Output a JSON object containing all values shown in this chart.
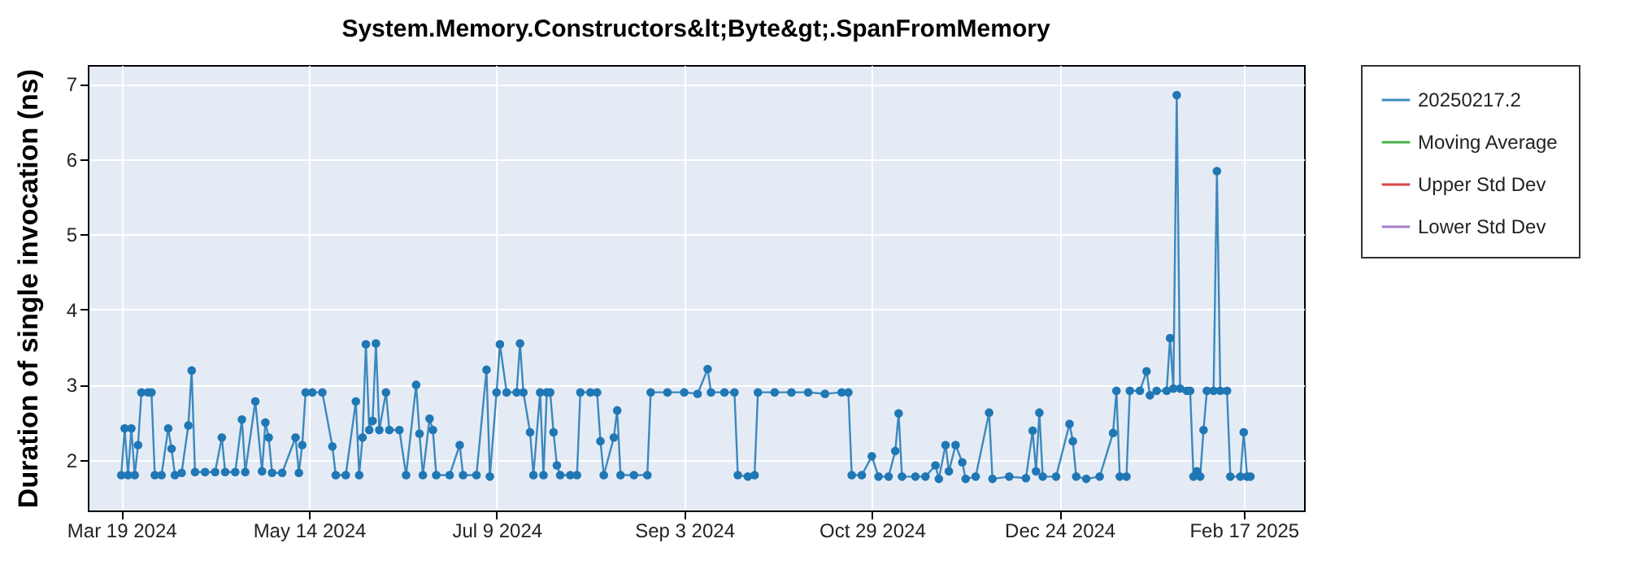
{
  "chart_data": {
    "type": "line",
    "title": "System.Memory.Constructors&lt;Byte&gt;.SpanFromMemory",
    "ylabel": "Duration of single invocation (ns)",
    "x": [
      "2024-03-19",
      "2024-03-20",
      "2024-03-21",
      "2024-03-22",
      "2024-03-23",
      "2024-03-24",
      "2024-03-25",
      "2024-03-27",
      "2024-03-28",
      "2024-03-29",
      "2024-03-31",
      "2024-04-02",
      "2024-04-03",
      "2024-04-04",
      "2024-04-06",
      "2024-04-08",
      "2024-04-09",
      "2024-04-10",
      "2024-04-13",
      "2024-04-16",
      "2024-04-18",
      "2024-04-19",
      "2024-04-22",
      "2024-04-24",
      "2024-04-25",
      "2024-04-28",
      "2024-04-30",
      "2024-05-01",
      "2024-05-02",
      "2024-05-03",
      "2024-05-06",
      "2024-05-10",
      "2024-05-11",
      "2024-05-12",
      "2024-05-13",
      "2024-05-15",
      "2024-05-18",
      "2024-05-21",
      "2024-05-22",
      "2024-05-25",
      "2024-05-28",
      "2024-05-29",
      "2024-05-30",
      "2024-05-31",
      "2024-06-01",
      "2024-06-02",
      "2024-06-03",
      "2024-06-04",
      "2024-06-06",
      "2024-06-07",
      "2024-06-10",
      "2024-06-12",
      "2024-06-15",
      "2024-06-16",
      "2024-06-17",
      "2024-06-19",
      "2024-06-20",
      "2024-06-21",
      "2024-06-25",
      "2024-06-28",
      "2024-06-29",
      "2024-07-03",
      "2024-07-06",
      "2024-07-07",
      "2024-07-09",
      "2024-07-10",
      "2024-07-12",
      "2024-07-15",
      "2024-07-16",
      "2024-07-17",
      "2024-07-19",
      "2024-07-20",
      "2024-07-22",
      "2024-07-23",
      "2024-07-24",
      "2024-07-25",
      "2024-07-26",
      "2024-07-27",
      "2024-07-28",
      "2024-07-31",
      "2024-08-02",
      "2024-08-03",
      "2024-08-06",
      "2024-08-08",
      "2024-08-09",
      "2024-08-10",
      "2024-08-13",
      "2024-08-14",
      "2024-08-15",
      "2024-08-19",
      "2024-08-23",
      "2024-08-24",
      "2024-08-29",
      "2024-09-03",
      "2024-09-07",
      "2024-09-10",
      "2024-09-11",
      "2024-09-15",
      "2024-09-18",
      "2024-09-19",
      "2024-09-22",
      "2024-09-24",
      "2024-09-25",
      "2024-09-30",
      "2024-10-05",
      "2024-10-10",
      "2024-10-15",
      "2024-10-20",
      "2024-10-22",
      "2024-10-23",
      "2024-10-26",
      "2024-10-29",
      "2024-10-31",
      "2024-11-03",
      "2024-11-05",
      "2024-11-06",
      "2024-11-07",
      "2024-11-11",
      "2024-11-14",
      "2024-11-17",
      "2024-11-18",
      "2024-11-20",
      "2024-11-21",
      "2024-11-23",
      "2024-11-25",
      "2024-11-26",
      "2024-11-29",
      "2024-12-03",
      "2024-12-04",
      "2024-12-09",
      "2024-12-14",
      "2024-12-16",
      "2024-12-17",
      "2024-12-18",
      "2024-12-19",
      "2024-12-23",
      "2024-12-27",
      "2024-12-28",
      "2024-12-29",
      "2025-01-01",
      "2025-01-05",
      "2025-01-09",
      "2025-01-10",
      "2025-01-11",
      "2025-01-13",
      "2025-01-14",
      "2025-01-17",
      "2025-01-19",
      "2025-01-20",
      "2025-01-22",
      "2025-01-25",
      "2025-01-26",
      "2025-01-27",
      "2025-01-28",
      "2025-01-29",
      "2025-01-31",
      "2025-02-01",
      "2025-02-02",
      "2025-02-03",
      "2025-02-04",
      "2025-02-05",
      "2025-02-06",
      "2025-02-08",
      "2025-02-09",
      "2025-02-10",
      "2025-02-12",
      "2025-02-13",
      "2025-02-16",
      "2025-02-17",
      "2025-02-18",
      "2025-02-19"
    ],
    "series": [
      {
        "name": "20250217.2",
        "color": "#1f77b4",
        "values": [
          1.8,
          2.42,
          1.8,
          2.42,
          1.8,
          2.2,
          2.9,
          2.9,
          2.9,
          1.8,
          1.8,
          2.42,
          2.15,
          1.8,
          1.83,
          2.46,
          3.19,
          1.84,
          1.84,
          1.84,
          2.3,
          1.84,
          1.84,
          2.54,
          1.84,
          2.78,
          1.85,
          2.5,
          2.3,
          1.83,
          1.83,
          2.3,
          1.83,
          2.2,
          2.9,
          2.9,
          2.9,
          2.18,
          1.8,
          1.8,
          2.78,
          1.8,
          2.3,
          3.54,
          2.4,
          2.52,
          3.55,
          2.4,
          2.9,
          2.4,
          2.4,
          1.8,
          3.0,
          2.35,
          1.8,
          2.55,
          2.4,
          1.8,
          1.8,
          2.2,
          1.8,
          1.8,
          3.2,
          1.78,
          2.9,
          3.54,
          2.9,
          2.9,
          3.55,
          2.9,
          2.37,
          1.8,
          2.9,
          1.8,
          2.9,
          2.9,
          2.37,
          1.93,
          1.8,
          1.8,
          1.8,
          2.9,
          2.9,
          2.9,
          2.25,
          1.8,
          2.3,
          2.66,
          1.8,
          1.8,
          1.8,
          2.9,
          2.9,
          2.9,
          2.88,
          3.21,
          2.9,
          2.9,
          2.9,
          1.8,
          1.78,
          1.8,
          2.9,
          2.9,
          2.9,
          2.9,
          2.88,
          2.9,
          2.9,
          1.8,
          1.8,
          2.05,
          1.78,
          1.78,
          2.12,
          2.62,
          1.78,
          1.78,
          1.78,
          1.93,
          1.75,
          2.2,
          1.85,
          2.2,
          1.97,
          1.75,
          1.78,
          2.63,
          1.75,
          1.78,
          1.76,
          2.39,
          1.85,
          2.63,
          1.78,
          1.78,
          2.48,
          2.25,
          1.78,
          1.75,
          1.78,
          2.36,
          2.92,
          1.78,
          1.78,
          2.92,
          2.92,
          3.18,
          2.86,
          2.92,
          2.92,
          3.62,
          2.95,
          6.85,
          2.95,
          2.92,
          2.92,
          1.78,
          1.85,
          1.78,
          2.4,
          2.92,
          2.92,
          5.84,
          2.92,
          2.92,
          1.78,
          1.78,
          2.37,
          1.78,
          1.78
        ]
      },
      {
        "name": "Moving Average",
        "color": "#2ca02c",
        "values": [
          null,
          null,
          null,
          null,
          null,
          null,
          null,
          null,
          null,
          null,
          null,
          null,
          null,
          null,
          null,
          null,
          null,
          null,
          null,
          null,
          null,
          null,
          null,
          null,
          null,
          null,
          null,
          null,
          null,
          null,
          null,
          null,
          null,
          null,
          null,
          null,
          null,
          null,
          null,
          null,
          null,
          null,
          null,
          null,
          null,
          null,
          null,
          null,
          null,
          null,
          null,
          null,
          null,
          null,
          null,
          null,
          null,
          null,
          null,
          null,
          null,
          null,
          null,
          null,
          null,
          null,
          null,
          null,
          null,
          null,
          null,
          null,
          null,
          null,
          null,
          null,
          null,
          null,
          null,
          null,
          null,
          null,
          null,
          null,
          null,
          null,
          null,
          null,
          null,
          null,
          null,
          null,
          null,
          null,
          null,
          null,
          null,
          null,
          null,
          null,
          null,
          null,
          null,
          null,
          null,
          null,
          null,
          null,
          null,
          null,
          null,
          null,
          null,
          null,
          null,
          null,
          null,
          null,
          null,
          null,
          null,
          null,
          null,
          null,
          null,
          null,
          null,
          null,
          null,
          null,
          null,
          null,
          null,
          null,
          null,
          null,
          null,
          null,
          null,
          null,
          null,
          null,
          null,
          null,
          null,
          null,
          null,
          null,
          null,
          null,
          null,
          null,
          null,
          null,
          null,
          null,
          null,
          null,
          null,
          null,
          null,
          null,
          null,
          null,
          null,
          null,
          null,
          null,
          null,
          null,
          null
        ]
      },
      {
        "name": "Upper Std Dev",
        "color": "#d62728",
        "values": [
          null,
          null,
          null,
          null,
          null,
          null,
          null,
          null,
          null,
          null,
          null,
          null,
          null,
          null,
          null,
          null,
          null,
          null,
          null,
          null,
          null,
          null,
          null,
          null,
          null,
          null,
          null,
          null,
          null,
          null,
          null,
          null,
          null,
          null,
          null,
          null,
          null,
          null,
          null,
          null,
          null,
          null,
          null,
          null,
          null,
          null,
          null,
          null,
          null,
          null,
          null,
          null,
          null,
          null,
          null,
          null,
          null,
          null,
          null,
          null,
          null,
          null,
          null,
          null,
          null,
          null,
          null,
          null,
          null,
          null,
          null,
          null,
          null,
          null,
          null,
          null,
          null,
          null,
          null,
          null,
          null,
          null,
          null,
          null,
          null,
          null,
          null,
          null,
          null,
          null,
          null,
          null,
          null,
          null,
          null,
          null,
          null,
          null,
          null,
          null,
          null,
          null,
          null,
          null,
          null,
          null,
          null,
          null,
          null,
          null,
          null,
          null,
          null,
          null,
          null,
          null,
          null,
          null,
          null,
          null,
          null,
          null,
          null,
          null,
          null,
          null,
          null,
          null,
          null,
          null,
          null,
          null,
          null,
          null,
          null,
          null,
          null,
          null,
          null,
          null,
          null,
          null,
          null,
          null,
          null,
          null,
          null,
          null,
          null,
          null,
          null,
          null,
          null,
          null,
          null,
          null,
          null,
          null,
          null,
          null,
          null,
          null,
          null,
          null,
          null,
          null,
          null,
          null,
          null,
          null,
          null
        ]
      },
      {
        "name": "Lower Std Dev",
        "color": "#9467bd",
        "values": [
          null,
          null,
          null,
          null,
          null,
          null,
          null,
          null,
          null,
          null,
          null,
          null,
          null,
          null,
          null,
          null,
          null,
          null,
          null,
          null,
          null,
          null,
          null,
          null,
          null,
          null,
          null,
          null,
          null,
          null,
          null,
          null,
          null,
          null,
          null,
          null,
          null,
          null,
          null,
          null,
          null,
          null,
          null,
          null,
          null,
          null,
          null,
          null,
          null,
          null,
          null,
          null,
          null,
          null,
          null,
          null,
          null,
          null,
          null,
          null,
          null,
          null,
          null,
          null,
          null,
          null,
          null,
          null,
          null,
          null,
          null,
          null,
          null,
          null,
          null,
          null,
          null,
          null,
          null,
          null,
          null,
          null,
          null,
          null,
          null,
          null,
          null,
          null,
          null,
          null,
          null,
          null,
          null,
          null,
          null,
          null,
          null,
          null,
          null,
          null,
          null,
          null,
          null,
          null,
          null,
          null,
          null,
          null,
          null,
          null,
          null,
          null,
          null,
          null,
          null,
          null,
          null,
          null,
          null,
          null,
          null,
          null,
          null,
          null,
          null,
          null,
          null,
          null,
          null,
          null,
          null,
          null,
          null,
          null,
          null,
          null,
          null,
          null,
          null,
          null,
          null,
          null,
          null,
          null,
          null,
          null,
          null,
          null,
          null,
          null,
          null,
          null,
          null,
          null,
          null,
          null,
          null,
          null,
          null,
          null,
          null,
          null,
          null,
          null,
          null,
          null,
          null,
          null,
          null,
          null,
          null
        ]
      }
    ],
    "xlim": [
      "2024-03-09",
      "2025-03-07"
    ],
    "xticks": [
      {
        "value": "2024-03-19",
        "label": "Mar 19 2024"
      },
      {
        "value": "2024-05-14",
        "label": "May 14 2024"
      },
      {
        "value": "2024-07-09",
        "label": "Jul 9 2024"
      },
      {
        "value": "2024-09-03",
        "label": "Sep 3 2024"
      },
      {
        "value": "2024-10-29",
        "label": "Oct 29 2024"
      },
      {
        "value": "2024-12-24",
        "label": "Dec 24 2024"
      },
      {
        "value": "2025-02-17",
        "label": "Feb 17 2025"
      }
    ],
    "ylim": [
      1.33,
      7.25
    ],
    "yticks": [
      2,
      3,
      4,
      5,
      6,
      7
    ],
    "grid": true,
    "legend": "right",
    "marker": "circle",
    "line_style": "solid"
  }
}
